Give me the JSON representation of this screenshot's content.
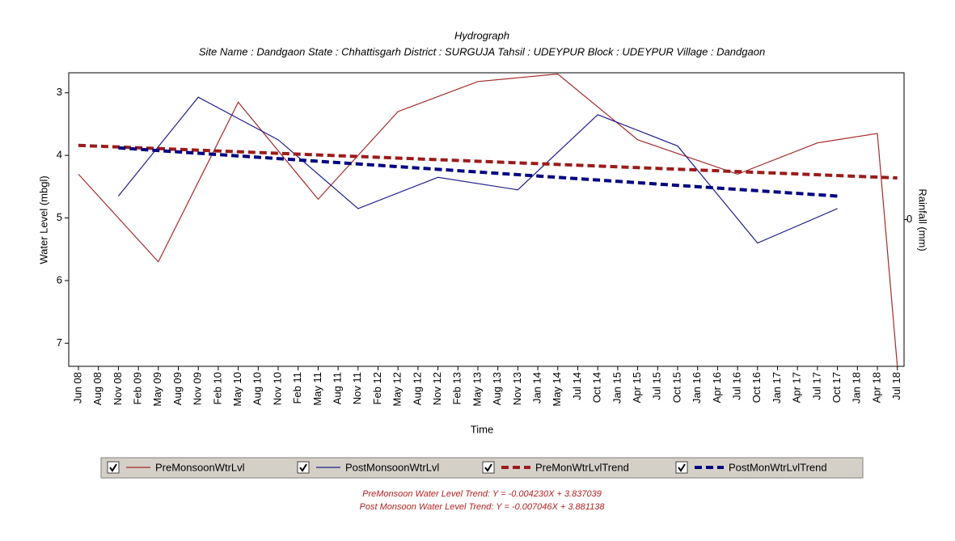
{
  "chart_data": {
    "type": "line",
    "title": "Hydrograph",
    "subtitle": "Site Name : Dandgaon  State : Chhattisgarh District : SURGUJA  Tahsil : UDEYPUR  Block : UDEYPUR Village : Dandgaon",
    "x_label": "Time",
    "y_label": "Water Level (mbgl)",
    "y2_label": "Rainfall (mm)",
    "categories": [
      "Jun 08",
      "Aug 08",
      "Nov 08",
      "Feb 09",
      "May 09",
      "Aug 09",
      "Nov 09",
      "Feb 10",
      "May 10",
      "Aug 10",
      "Nov 10",
      "Feb 11",
      "May 11",
      "Aug 11",
      "Nov 11",
      "Feb 12",
      "May 12",
      "Aug 12",
      "Nov 12",
      "Feb 13",
      "May 13",
      "Aug 13",
      "Nov 13",
      "Jan 14",
      "May 14",
      "Jul 14",
      "Oct 14",
      "Jan 15",
      "Apr 15",
      "Jul 15",
      "Oct 15",
      "Jan 16",
      "Apr 16",
      "Jul 16",
      "Oct 16",
      "Jan 17",
      "Apr 17",
      "Jul 17",
      "Oct 17",
      "Jan 18",
      "Apr 18",
      "Jul 18"
    ],
    "ylim": [
      2.68,
      7.37
    ],
    "y_inverted": true,
    "yticks": [
      3,
      4,
      5,
      6,
      7
    ],
    "y2lim": [
      -1,
      1
    ],
    "y2ticks": [
      0
    ],
    "series": [
      {
        "name": "PreMonsoonWtrLvl",
        "color": "#a52a2a",
        "line_style": "solid",
        "x": [
          "Jun 08",
          "May 09",
          "May 10",
          "May 11",
          "May 12",
          "May 13",
          "May 14",
          "Apr 15",
          "Jul 16",
          "Jul 17",
          "Apr 18",
          "Jul 18"
        ],
        "values": [
          4.3,
          5.7,
          3.15,
          4.7,
          3.3,
          2.82,
          2.7,
          3.75,
          4.3,
          3.8,
          3.65,
          7.37
        ]
      },
      {
        "name": "PostMonsoonWtrLvl",
        "color": "#1f1f8f",
        "line_style": "solid",
        "x": [
          "Nov 08",
          "Nov 09",
          "Nov 10",
          "Nov 11",
          "Nov 12",
          "Nov 13",
          "Oct 14",
          "Oct 15",
          "Oct 16",
          "Oct 17"
        ],
        "values": [
          4.65,
          3.07,
          3.75,
          4.85,
          4.35,
          4.55,
          3.35,
          3.85,
          5.4,
          4.85
        ]
      },
      {
        "name": "PreMonWtrLvlTrend",
        "color": "#9b1b1b",
        "line_style": "dashed",
        "x": [
          "Jun 08",
          "Jul 18"
        ],
        "values": [
          3.84,
          4.36
        ]
      },
      {
        "name": "PostMonWtrLvlTrend",
        "color": "#000080",
        "line_style": "dashed",
        "x": [
          "Nov 08",
          "Oct 17"
        ],
        "values": [
          3.88,
          4.65
        ]
      }
    ],
    "annotations": [
      "PreMonsoon Water Level Trend: Y = -0.004230X + 3.837039",
      "Post Monsoon Water Level Trend: Y = -0.007046X + 3.881138"
    ]
  }
}
